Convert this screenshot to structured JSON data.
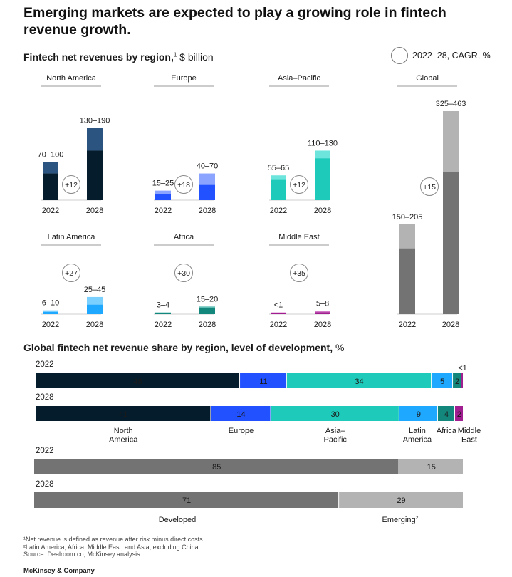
{
  "title": "Emerging markets are expected to play a growing role in fintech revenue growth.",
  "subtitle1_bold": "Fintech net revenues by region,",
  "subtitle1_sup": "1",
  "subtitle1_unit": " $ billion",
  "legend_label": "2022–28, CAGR, %",
  "subtitle2_bold": "Global fintech net revenue share by region, level of development,",
  "subtitle2_unit": " %",
  "footnotes": {
    "f1": "¹Net revenue is defined as revenue after risk minus direct costs.",
    "f2": "²Latin America, Africa, Middle East, and Asia, excluding China.",
    "source": " Source: Dealroom.co; McKinsey analysis"
  },
  "brand": "McKinsey & Company",
  "colors": {
    "north_america": "#051c2c",
    "north_america_light": "#2b5580",
    "europe": "#2251ff",
    "europe_light": "#8aa4ff",
    "asia_pacific": "#1ecbbb",
    "asia_pacific_light": "#6ee5dc",
    "latin_america": "#1fa8ff",
    "latin_america_light": "#7ad0ff",
    "africa": "#14877d",
    "africa_light": "#5fbfb5",
    "middle_east": "#a01e8f",
    "middle_east_light": "#d47ac8",
    "global": "#737373",
    "global_light": "#b3b3b3"
  },
  "chart_data": [
    {
      "type": "bar",
      "title": "Fintech net revenues by region",
      "ylabel": "$ billion",
      "categories": [
        "2022",
        "2028"
      ],
      "panels": [
        {
          "region": "North America",
          "cagr": "+12",
          "labels": [
            "70–100",
            "130–190"
          ],
          "ranges": [
            [
              70,
              100
            ],
            [
              130,
              190
            ]
          ]
        },
        {
          "region": "Europe",
          "cagr": "+18",
          "labels": [
            "15–25",
            "40–70"
          ],
          "ranges": [
            [
              15,
              25
            ],
            [
              40,
              70
            ]
          ]
        },
        {
          "region": "Asia–Pacific",
          "cagr": "+12",
          "labels": [
            "55–65",
            "110–130"
          ],
          "ranges": [
            [
              55,
              65
            ],
            [
              110,
              130
            ]
          ]
        },
        {
          "region": "Latin America",
          "cagr": "+27",
          "labels": [
            "6–10",
            "25–45"
          ],
          "ranges": [
            [
              6,
              10
            ],
            [
              25,
              45
            ]
          ]
        },
        {
          "region": "Africa",
          "cagr": "+30",
          "labels": [
            "3–4",
            "15–20"
          ],
          "ranges": [
            [
              3,
              4
            ],
            [
              15,
              20
            ]
          ]
        },
        {
          "region": "Middle East",
          "cagr": "+35",
          "labels": [
            "<1",
            "5–8"
          ],
          "ranges": [
            [
              0.5,
              1
            ],
            [
              5,
              8
            ]
          ]
        },
        {
          "region": "Global",
          "cagr": "+15",
          "labels": [
            "150–205",
            "325–463"
          ],
          "ranges": [
            [
              150,
              205
            ],
            [
              325,
              463
            ]
          ]
        }
      ]
    },
    {
      "type": "bar",
      "title": "Global fintech net revenue share by region, level of development",
      "ylabel": "%",
      "orientation": "horizontal-stacked",
      "region_names": [
        "North America",
        "Europe",
        "Asia–Pacific",
        "Latin America",
        "Africa",
        "Middle East"
      ],
      "region_rows": [
        {
          "year": "2022",
          "values": [
            48,
            11,
            34,
            5,
            2,
            0.5
          ],
          "labels": [
            "48",
            "11",
            "34",
            "5",
            "2",
            "<1"
          ]
        },
        {
          "year": "2028",
          "values": [
            41,
            14,
            30,
            9,
            4,
            2
          ],
          "labels": [
            "41",
            "14",
            "30",
            "9",
            "4",
            "2"
          ]
        }
      ],
      "development_names": [
        "Developed",
        "Emerging"
      ],
      "development_sup": "2",
      "development_rows": [
        {
          "year": "2022",
          "values": [
            85,
            15
          ],
          "labels": [
            "85",
            "15"
          ]
        },
        {
          "year": "2028",
          "values": [
            71,
            29
          ],
          "labels": [
            "71",
            "29"
          ]
        }
      ]
    }
  ]
}
